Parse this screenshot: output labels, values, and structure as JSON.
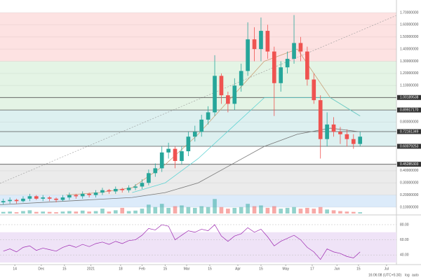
{
  "chart_data": {
    "type": "candlestick",
    "x": [
      2,
      6,
      10,
      14,
      18,
      22,
      26,
      30,
      34,
      38,
      42,
      46,
      50,
      54,
      58,
      62,
      66,
      70,
      74,
      78,
      82,
      86,
      90,
      94,
      98,
      102,
      106,
      110,
      114,
      118,
      122,
      126,
      130,
      134,
      138,
      142,
      146,
      150,
      154,
      158,
      162,
      166,
      170,
      174,
      178,
      182,
      186,
      190,
      194,
      198,
      202,
      206,
      210,
      214,
      218
    ],
    "open": [
      0.14,
      0.15,
      0.16,
      0.15,
      0.17,
      0.19,
      0.17,
      0.18,
      0.17,
      0.16,
      0.18,
      0.2,
      0.19,
      0.21,
      0.2,
      0.22,
      0.24,
      0.23,
      0.25,
      0.24,
      0.26,
      0.27,
      0.3,
      0.38,
      0.42,
      0.55,
      0.58,
      0.48,
      0.56,
      0.68,
      0.72,
      0.82,
      0.88,
      1.18,
      1.02,
      0.95,
      1.1,
      1.22,
      1.48,
      1.4,
      1.55,
      1.38,
      1.12,
      1.25,
      1.32,
      1.45,
      1.38,
      1.15,
      0.98,
      0.66,
      0.78,
      0.72,
      0.7,
      0.66,
      0.62
    ],
    "high": [
      0.17,
      0.18,
      0.17,
      0.19,
      0.21,
      0.2,
      0.2,
      0.19,
      0.18,
      0.2,
      0.22,
      0.21,
      0.23,
      0.22,
      0.24,
      0.26,
      0.25,
      0.27,
      0.26,
      0.28,
      0.29,
      0.33,
      0.41,
      0.46,
      0.6,
      0.63,
      0.6,
      0.6,
      0.72,
      0.77,
      0.86,
      0.93,
      1.35,
      1.2,
      1.05,
      1.16,
      1.28,
      1.62,
      1.58,
      1.66,
      1.6,
      1.42,
      1.3,
      1.38,
      1.68,
      1.5,
      1.42,
      1.2,
      1.02,
      0.88,
      0.84,
      0.76,
      0.74,
      0.7,
      0.72
    ],
    "low": [
      0.12,
      0.13,
      0.13,
      0.14,
      0.15,
      0.16,
      0.15,
      0.15,
      0.14,
      0.15,
      0.16,
      0.17,
      0.17,
      0.18,
      0.18,
      0.2,
      0.21,
      0.21,
      0.22,
      0.22,
      0.24,
      0.25,
      0.28,
      0.35,
      0.39,
      0.5,
      0.42,
      0.45,
      0.52,
      0.64,
      0.68,
      0.78,
      0.85,
      0.95,
      0.88,
      0.9,
      1.05,
      1.18,
      1.3,
      1.3,
      1.32,
      0.85,
      1.05,
      1.2,
      1.28,
      1.3,
      1.1,
      0.95,
      0.5,
      0.6,
      0.68,
      0.62,
      0.6,
      0.58,
      0.6
    ],
    "close": [
      0.15,
      0.16,
      0.15,
      0.17,
      0.19,
      0.17,
      0.18,
      0.17,
      0.16,
      0.18,
      0.2,
      0.19,
      0.21,
      0.2,
      0.22,
      0.24,
      0.23,
      0.25,
      0.24,
      0.26,
      0.27,
      0.3,
      0.38,
      0.42,
      0.55,
      0.58,
      0.48,
      0.56,
      0.68,
      0.72,
      0.82,
      0.88,
      1.18,
      1.02,
      0.95,
      1.1,
      1.22,
      1.48,
      1.4,
      1.55,
      1.38,
      1.12,
      1.25,
      1.32,
      1.45,
      1.38,
      1.15,
      0.98,
      0.66,
      0.78,
      0.72,
      0.7,
      0.66,
      0.62,
      0.68
    ],
    "up_color": "#26a69a",
    "down_color": "#ef5350",
    "xlim": [
      0,
      240
    ],
    "xticks": [
      {
        "value": 9,
        "label": "14"
      },
      {
        "value": 25,
        "label": "Dec"
      },
      {
        "value": 39,
        "label": "15"
      },
      {
        "value": 55,
        "label": "2021"
      },
      {
        "value": 73,
        "label": "18"
      },
      {
        "value": 86,
        "label": "Feb"
      },
      {
        "value": 100,
        "label": "15"
      },
      {
        "value": 113,
        "label": "Mar"
      },
      {
        "value": 127,
        "label": "15"
      },
      {
        "value": 144,
        "label": "Apr"
      },
      {
        "value": 158,
        "label": "15"
      },
      {
        "value": 173,
        "label": "May"
      },
      {
        "value": 189,
        "label": "17"
      },
      {
        "value": 204,
        "label": "Jun"
      },
      {
        "value": 217,
        "label": "15"
      },
      {
        "value": 234,
        "label": "Jul"
      }
    ],
    "ylim": [
      0.1,
      1.7
    ],
    "yticks": [
      {
        "value": 1.7,
        "label": "1.70000000"
      },
      {
        "value": 1.6,
        "label": "1.60000000"
      },
      {
        "value": 1.5,
        "label": "1.50000000"
      },
      {
        "value": 1.4,
        "label": "1.40000000"
      },
      {
        "value": 1.3,
        "label": "1.30000000"
      },
      {
        "value": 1.2,
        "label": "1.20000000"
      },
      {
        "value": 1.1,
        "label": "1.10000000"
      },
      {
        "value": 0.8,
        "label": "0.80000000"
      },
      {
        "value": 0.4,
        "label": "0.40000000"
      },
      {
        "value": 0.3,
        "label": "0.30000000"
      },
      {
        "value": 0.2,
        "label": "0.20000000"
      },
      {
        "value": 0.1,
        "label": "0.10000000"
      }
    ],
    "levels": [
      {
        "value": 1.00189538,
        "label": "1.00189538"
      },
      {
        "value": 0.8991717,
        "label": "0.89917170"
      },
      {
        "value": 0.72161349,
        "label": "0.72161349"
      },
      {
        "value": 0.60079253,
        "label": "0.60079253"
      },
      {
        "value": 0.45285303,
        "label": "0.45285303"
      }
    ],
    "zones": [
      {
        "from": 1.3,
        "to": 1.7,
        "color": "#fde2e2"
      },
      {
        "from": 0.8991717,
        "to": 1.3,
        "color": "#e4f4e5"
      },
      {
        "from": 0.60079253,
        "to": 0.8991717,
        "color": "#ddf0f0"
      },
      {
        "from": 0.2,
        "to": 0.45285303,
        "color": "#ebebeb"
      },
      {
        "from": 0.1,
        "to": 0.2,
        "color": "#dcebfa"
      }
    ],
    "moving_averages": [
      {
        "color": "#c9a27a",
        "x": [
          40,
          60,
          80,
          100,
          120,
          140,
          160,
          180,
          200,
          218
        ],
        "values": [
          0.2,
          0.22,
          0.26,
          0.45,
          0.7,
          1.0,
          1.3,
          1.4,
          1.0,
          0.85
        ]
      },
      {
        "color": "#5fd3d3",
        "x": [
          80,
          100,
          120,
          140,
          160,
          180,
          200,
          218
        ],
        "values": [
          0.22,
          0.3,
          0.5,
          0.75,
          1.0,
          1.0,
          1.0,
          0.85
        ]
      },
      {
        "color": "#777777",
        "x": [
          0,
          40,
          80,
          100,
          120,
          140,
          160,
          180,
          200,
          218
        ],
        "values": [
          0.12,
          0.15,
          0.18,
          0.22,
          0.3,
          0.45,
          0.6,
          0.7,
          0.75,
          0.72
        ]
      }
    ],
    "volume": {
      "ylim": [
        0,
        100
      ],
      "values": [
        10,
        12,
        8,
        15,
        20,
        10,
        12,
        10,
        8,
        12,
        15,
        12,
        18,
        12,
        15,
        30,
        12,
        20,
        35,
        15,
        18,
        30,
        55,
        40,
        60,
        35,
        45,
        50,
        40,
        35,
        45,
        40,
        90,
        40,
        30,
        35,
        40,
        60,
        45,
        50,
        35,
        45,
        30,
        35,
        40,
        30,
        35,
        30,
        40,
        25,
        20,
        15,
        12,
        10,
        8
      ]
    },
    "rsi": {
      "color": "#9c27b0",
      "band": [
        30,
        70
      ],
      "band_color": "#efe3f7",
      "ylim": [
        30,
        92
      ],
      "yticks": [
        {
          "value": 80,
          "label": "80.00"
        },
        {
          "value": 60,
          "label": "60.00"
        },
        {
          "value": 40,
          "label": "40.00"
        }
      ],
      "values": [
        45,
        48,
        44,
        50,
        52,
        46,
        49,
        47,
        45,
        50,
        53,
        50,
        54,
        51,
        55,
        57,
        54,
        58,
        55,
        59,
        60,
        66,
        75,
        73,
        80,
        78,
        60,
        66,
        72,
        70,
        74,
        72,
        80,
        65,
        58,
        65,
        68,
        76,
        70,
        74,
        64,
        52,
        58,
        62,
        66,
        60,
        50,
        44,
        34,
        48,
        44,
        42,
        38,
        36,
        44
      ]
    },
    "footer": {
      "time": "16:06:08 (UTC+5:30)",
      "log": "log",
      "auto": "auto"
    }
  }
}
